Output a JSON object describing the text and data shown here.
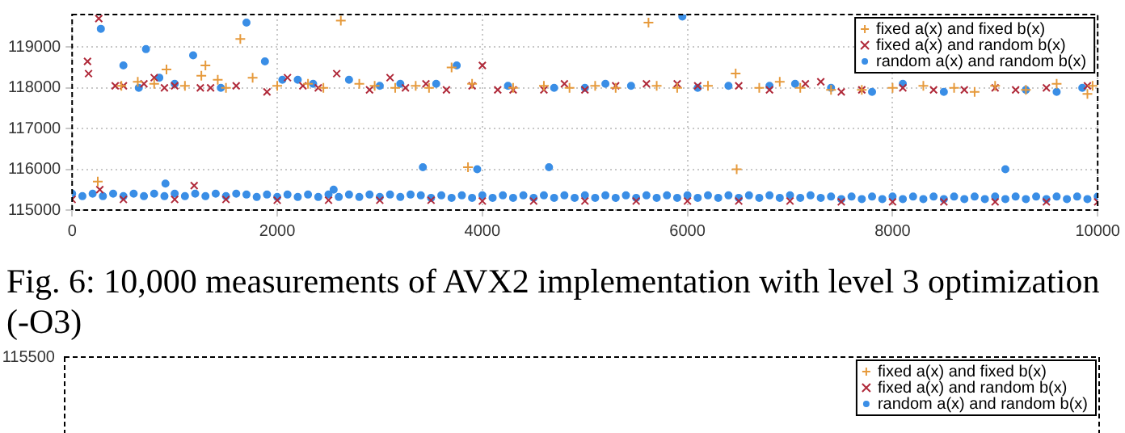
{
  "chart_data": [
    {
      "type": "scatter",
      "xlim": [
        0,
        10000
      ],
      "xticks": [
        0,
        2000,
        4000,
        6000,
        8000,
        10000
      ],
      "ylim": [
        115000,
        119800
      ],
      "yticks": [
        115000,
        116000,
        117000,
        118000,
        119000
      ],
      "grid": true,
      "legend": "top right",
      "annotations": [
        "Fig. 6: 10,000 measurements of AVX2 implementation with level 3 optimization (-O3)"
      ],
      "series": [
        {
          "name": "fixed a(x) and fixed b(x)",
          "color": "#e69a3c",
          "marker": "cross",
          "x": [
            250,
            480,
            640,
            800,
            920,
            1100,
            1260,
            1300,
            1420,
            1500,
            1640,
            1760,
            2000,
            2300,
            2450,
            2620,
            2800,
            2950,
            3150,
            3350,
            3480,
            3700,
            3860,
            3900,
            4300,
            4600,
            4850,
            5100,
            5300,
            5620,
            5700,
            5900,
            6200,
            6470,
            6480,
            6700,
            6900,
            7100,
            7400,
            7700,
            8000,
            8300,
            8600,
            8800,
            9000,
            9300,
            9600,
            9900,
            9950
          ],
          "values": [
            115700,
            118050,
            118150,
            118100,
            118450,
            118050,
            118300,
            118550,
            118200,
            118000,
            119200,
            118250,
            118050,
            118100,
            118000,
            119650,
            118100,
            118050,
            118000,
            118050,
            118000,
            118500,
            116050,
            118100,
            118000,
            118050,
            118000,
            118050,
            118000,
            119600,
            118050,
            118000,
            118050,
            118350,
            116000,
            118000,
            118150,
            118000,
            117950,
            117950,
            118000,
            118050,
            118000,
            117900,
            118050,
            117950,
            118100,
            117850,
            118050
          ]
        },
        {
          "name": "fixed a(x) and random b(x)",
          "color": "#b02a3a",
          "marker": "x",
          "x": [
            150,
            160,
            260,
            270,
            420,
            500,
            700,
            800,
            900,
            1000,
            1190,
            1250,
            1350,
            1600,
            1900,
            2100,
            2250,
            2400,
            2580,
            2900,
            3100,
            3250,
            3450,
            3650,
            3900,
            4000,
            4150,
            4300,
            4600,
            4800,
            5000,
            5300,
            5600,
            5900,
            6100,
            6500,
            6800,
            7150,
            7300,
            7500,
            7700,
            8100,
            8400,
            8700,
            9000,
            9200,
            9500,
            9900,
            0,
            500,
            1000,
            1500,
            2000,
            2500,
            3000,
            3500,
            4000,
            4500,
            5000,
            5500,
            6000,
            6500,
            7000,
            7500,
            8000,
            8500,
            9000,
            9500,
            10000
          ],
          "values": [
            118650,
            118350,
            119700,
            115500,
            118050,
            118050,
            118100,
            118250,
            118000,
            118050,
            115600,
            118000,
            118000,
            118050,
            117900,
            118250,
            118050,
            118000,
            118350,
            117950,
            118250,
            118000,
            118100,
            117950,
            118050,
            118550,
            117950,
            117950,
            117950,
            118100,
            117950,
            118050,
            118100,
            118100,
            118050,
            118050,
            117950,
            118100,
            118150,
            117900,
            117950,
            118000,
            117950,
            117950,
            118000,
            117950,
            118000,
            118050,
            115260,
            115260,
            115260,
            115260,
            115240,
            115240,
            115240,
            115240,
            115220,
            115220,
            115220,
            115220,
            115220,
            115220,
            115220,
            115200,
            115200,
            115200,
            115200,
            115200,
            115200
          ]
        },
        {
          "name": "random a(x) and random b(x)",
          "color": "#3a8ee6",
          "marker": "circle",
          "x": [
            280,
            500,
            650,
            720,
            850,
            910,
            1000,
            1180,
            1450,
            1700,
            1880,
            2050,
            2200,
            2350,
            2550,
            2700,
            3000,
            3200,
            3420,
            3550,
            3750,
            3950,
            4250,
            4650,
            4700,
            5000,
            5200,
            5450,
            5950,
            6100,
            6400,
            6800,
            7050,
            7400,
            7800,
            8100,
            8500,
            9100,
            9300,
            9600,
            9850,
            0,
            100,
            200,
            300,
            400,
            500,
            600,
            700,
            800,
            900,
            1000,
            1100,
            1200,
            1300,
            1400,
            1500,
            1600,
            1700,
            1800,
            1900,
            2000,
            2100,
            2200,
            2300,
            2400,
            2500,
            2600,
            2700,
            2800,
            2900,
            3000,
            3100,
            3200,
            3300,
            3400,
            3500,
            3600,
            3700,
            3800,
            3900,
            4000,
            4100,
            4200,
            4300,
            4400,
            4500,
            4600,
            4700,
            4800,
            4900,
            5000,
            5100,
            5200,
            5300,
            5400,
            5500,
            5600,
            5700,
            5800,
            5900,
            6000,
            6100,
            6200,
            6300,
            6400,
            6500,
            6600,
            6700,
            6800,
            6900,
            7000,
            7100,
            7200,
            7300,
            7400,
            7500,
            7600,
            7700,
            7800,
            7900,
            8000,
            8100,
            8200,
            8300,
            8400,
            8500,
            8600,
            8700,
            8800,
            8900,
            9000,
            9100,
            9200,
            9300,
            9400,
            9500,
            9600,
            9700,
            9800,
            9900,
            10000
          ],
          "values": [
            119450,
            118550,
            118000,
            118950,
            118250,
            115650,
            118100,
            118800,
            118000,
            119600,
            118650,
            118200,
            118200,
            118100,
            115500,
            118200,
            118050,
            118100,
            116050,
            118100,
            118550,
            116000,
            118050,
            116050,
            118000,
            118000,
            118100,
            118050,
            119750,
            118000,
            118050,
            118050,
            118100,
            118000,
            117900,
            118100,
            117900,
            116000,
            117950,
            117900,
            118000,
            115400,
            115340,
            115400,
            115340,
            115400,
            115340,
            115400,
            115340,
            115400,
            115340,
            115400,
            115340,
            115400,
            115340,
            115400,
            115340,
            115400,
            115380,
            115320,
            115380,
            115320,
            115380,
            115320,
            115380,
            115320,
            115380,
            115320,
            115380,
            115320,
            115380,
            115320,
            115380,
            115320,
            115380,
            115360,
            115300,
            115360,
            115300,
            115360,
            115300,
            115360,
            115300,
            115360,
            115300,
            115360,
            115300,
            115360,
            115300,
            115360,
            115300,
            115360,
            115300,
            115360,
            115300,
            115360,
            115300,
            115360,
            115300,
            115360,
            115300,
            115360,
            115300,
            115360,
            115300,
            115360,
            115300,
            115360,
            115300,
            115360,
            115300,
            115360,
            115300,
            115360,
            115300,
            115330,
            115270,
            115330,
            115270,
            115330,
            115270,
            115330,
            115270,
            115330,
            115270,
            115330,
            115270,
            115330,
            115270,
            115330,
            115270,
            115330,
            115270,
            115330,
            115270,
            115330,
            115270,
            115330,
            115270,
            115330,
            115270,
            115330
          ]
        }
      ]
    },
    {
      "type": "other",
      "legend": "top right",
      "annotations": [
        "115500"
      ],
      "series": [
        {
          "name": "fixed a(x) and fixed b(x)",
          "color": "#e69a3c",
          "marker": "cross"
        },
        {
          "name": "fixed a(x) and random b(x)",
          "color": "#b02a3a",
          "marker": "x"
        },
        {
          "name": "random a(x) and random b(x)",
          "color": "#3a8ee6",
          "marker": "circle"
        }
      ]
    }
  ]
}
